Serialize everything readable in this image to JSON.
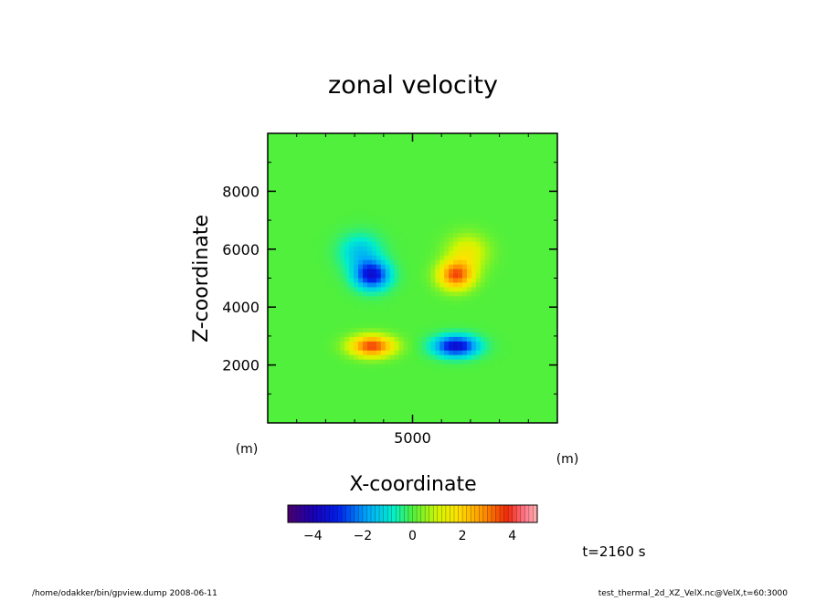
{
  "chart_data": {
    "type": "heatmap",
    "title": "zonal velocity",
    "xlabel": "X-coordinate",
    "ylabel": "Z-coordinate",
    "x_unit": "(m)",
    "y_unit": "(m)",
    "xlim": [
      0,
      10000
    ],
    "ylim": [
      0,
      10000
    ],
    "x_ticks": [
      {
        "value": 5000,
        "label": "5000"
      }
    ],
    "y_ticks": [
      {
        "value": 2000,
        "label": "2000"
      },
      {
        "value": 4000,
        "label": "4000"
      },
      {
        "value": 6000,
        "label": "6000"
      },
      {
        "value": 8000,
        "label": "8000"
      }
    ],
    "value_range": [
      -5,
      5
    ],
    "colorbar_ticks": [
      {
        "value": -4,
        "label": "−4"
      },
      {
        "value": -2,
        "label": "−2"
      },
      {
        "value": 0,
        "label": "0"
      },
      {
        "value": 2,
        "label": "2"
      },
      {
        "value": 4,
        "label": "4"
      }
    ],
    "colormap": "rainbow",
    "features": [
      {
        "x": 3600,
        "z": 5100,
        "value": -3.4,
        "sx": 600,
        "sz": 480
      },
      {
        "x": 3200,
        "z": 5900,
        "value": -1.4,
        "sx": 700,
        "sz": 600
      },
      {
        "x": 6500,
        "z": 5100,
        "value": 3.4,
        "sx": 600,
        "sz": 480
      },
      {
        "x": 6900,
        "z": 5900,
        "value": 1.4,
        "sx": 700,
        "sz": 600
      },
      {
        "x": 3600,
        "z": 2650,
        "value": 3.6,
        "sx": 750,
        "sz": 360
      },
      {
        "x": 6500,
        "z": 2650,
        "value": -3.6,
        "sx": 750,
        "sz": 360
      }
    ],
    "time_label": "t=2160 s"
  },
  "footer": {
    "left": "/home/odakker/bin/gpview.dump  2008-06-11",
    "right": "test_thermal_2d_XZ_VelX.nc@VelX,t=60:3000"
  }
}
